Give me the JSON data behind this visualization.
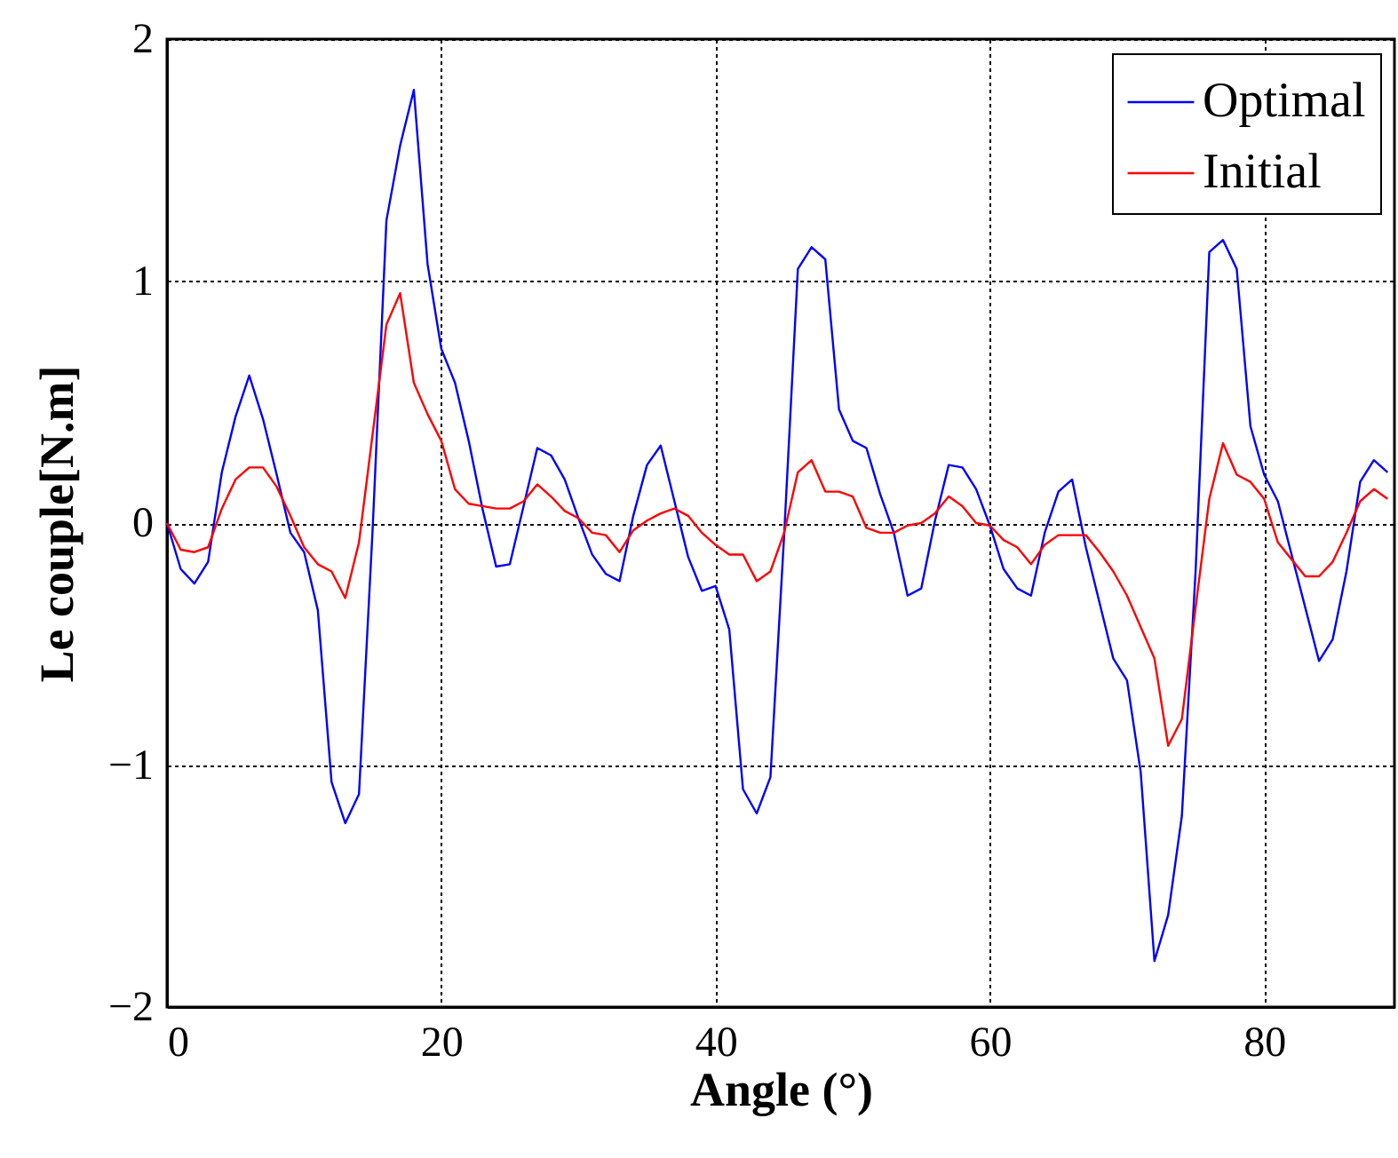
{
  "chart_data": {
    "type": "line",
    "xlabel": "Angle (°)",
    "ylabel": "Le couple[N.m]",
    "x": [
      0,
      1,
      2,
      3,
      4,
      5,
      6,
      7,
      8,
      9,
      10,
      11,
      12,
      13,
      14,
      15,
      16,
      17,
      18,
      19,
      20,
      21,
      22,
      23,
      24,
      25,
      26,
      27,
      28,
      29,
      30,
      31,
      32,
      33,
      34,
      35,
      36,
      37,
      38,
      39,
      40,
      41,
      42,
      43,
      44,
      45,
      46,
      47,
      48,
      49,
      50,
      51,
      52,
      53,
      54,
      55,
      56,
      57,
      58,
      59,
      60,
      61,
      62,
      63,
      64,
      65,
      66,
      67,
      68,
      69,
      70,
      71,
      72,
      73,
      74,
      75,
      76,
      77,
      78,
      79,
      80,
      81,
      82,
      83,
      84,
      85,
      86,
      87,
      88,
      89
    ],
    "series": [
      {
        "name": "Optimal",
        "color": "#0000ff",
        "values": [
          0,
          -0.19,
          -0.25,
          -0.16,
          0.21,
          0.44,
          0.61,
          0.43,
          0.2,
          -0.04,
          -0.12,
          -0.36,
          -1.07,
          -1.24,
          -1.12,
          -0.02,
          1.25,
          1.56,
          1.79,
          1.07,
          0.72,
          0.58,
          0.34,
          0.06,
          -0.18,
          -0.17,
          0.07,
          0.31,
          0.28,
          0.18,
          0.02,
          -0.13,
          -0.21,
          -0.24,
          0.03,
          0.24,
          0.32,
          0.09,
          -0.14,
          -0.28,
          -0.26,
          -0.44,
          -1.1,
          -1.2,
          -1.05,
          -0.05,
          1.05,
          1.14,
          1.09,
          0.47,
          0.34,
          0.31,
          0.12,
          -0.04,
          -0.3,
          -0.27,
          0.01,
          0.24,
          0.23,
          0.14,
          -0.01,
          -0.19,
          -0.27,
          -0.3,
          -0.04,
          0.13,
          0.18,
          -0.1,
          -0.33,
          -0.56,
          -0.65,
          -1.03,
          -1.81,
          -1.62,
          -1.21,
          -0.2,
          1.12,
          1.17,
          1.05,
          0.4,
          0.2,
          0.09,
          -0.13,
          -0.35,
          -0.57,
          -0.48,
          -0.2,
          0.17,
          0.26,
          0.21
        ]
      },
      {
        "name": "Initial",
        "color": "#ff0000",
        "values": [
          0,
          -0.11,
          -0.12,
          -0.1,
          0.06,
          0.18,
          0.23,
          0.23,
          0.15,
          0.03,
          -0.1,
          -0.17,
          -0.2,
          -0.31,
          -0.08,
          0.37,
          0.82,
          0.95,
          0.58,
          0.45,
          0.34,
          0.14,
          0.08,
          0.07,
          0.06,
          0.06,
          0.09,
          0.16,
          0.11,
          0.05,
          0.02,
          -0.04,
          -0.05,
          -0.12,
          -0.03,
          0.01,
          0.04,
          0.06,
          0.03,
          -0.04,
          -0.09,
          -0.13,
          -0.13,
          -0.24,
          -0.2,
          -0.04,
          0.21,
          0.26,
          0.13,
          0.13,
          0.11,
          -0.02,
          -0.04,
          -0.04,
          -0.01,
          0,
          0.04,
          0.11,
          0.07,
          0,
          -0.01,
          -0.07,
          -0.1,
          -0.17,
          -0.09,
          -0.05,
          -0.05,
          -0.05,
          -0.12,
          -0.2,
          -0.3,
          -0.43,
          -0.56,
          -0.92,
          -0.81,
          -0.35,
          0.1,
          0.33,
          0.2,
          0.17,
          0.1,
          -0.08,
          -0.15,
          -0.22,
          -0.22,
          -0.16,
          -0.04,
          0.09,
          0.14,
          0.1
        ]
      }
    ],
    "xlim": [
      0,
      89.5
    ],
    "xticks": [
      0,
      20,
      40,
      60,
      80
    ],
    "ylim": [
      -2,
      2
    ],
    "yticks": [
      -2,
      -1,
      0,
      1,
      2
    ],
    "grid": true,
    "legend": "top right",
    "line_style": "solid",
    "marker": "none"
  }
}
